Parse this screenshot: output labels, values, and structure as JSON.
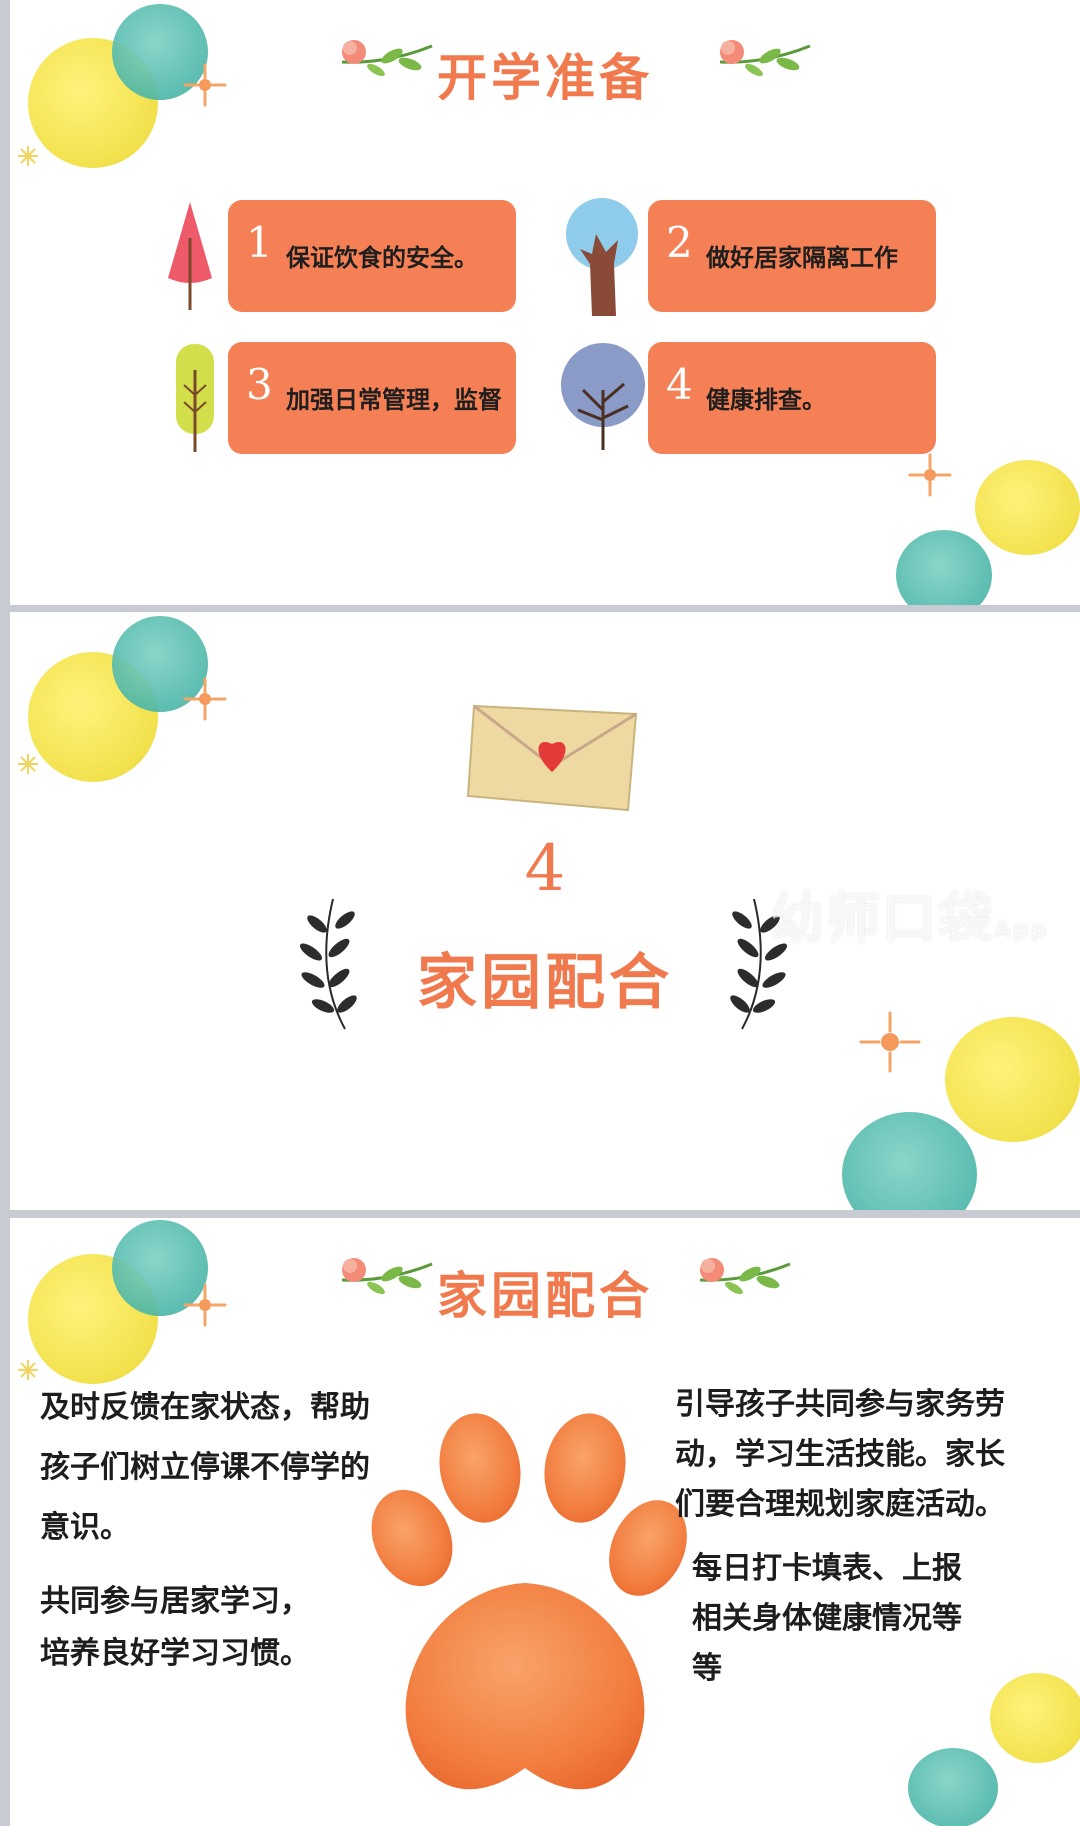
{
  "slide1": {
    "title": "开学准备",
    "items": [
      {
        "num": "1",
        "text": "保证饮食的安全。"
      },
      {
        "num": "2",
        "text": "做好居家隔离工作"
      },
      {
        "num": "3",
        "text": "加强日常管理，监督"
      },
      {
        "num": "4",
        "text": "健康排查。"
      }
    ]
  },
  "slide2": {
    "number": "4",
    "title": "家园配合",
    "watermark": "幼师口袋",
    "watermark_suffix": "App"
  },
  "slide3": {
    "title": "家园配合",
    "left_paragraphs": [
      [
        "及时反馈在家状态，帮助",
        "孩子们树立停课不停学的",
        "意识。"
      ],
      [
        "共同参与居家学习，",
        "培养良好学习习惯。"
      ]
    ],
    "right_paragraphs": [
      [
        "引导孩子共同参与家务劳",
        "动，学习生活技能。家长",
        "们要合理规划家庭活动。"
      ],
      [
        "每日打卡填表、上报",
        "相关身体健康情况等",
        "等"
      ]
    ]
  },
  "colors": {
    "accent": "#f07a4e",
    "card": "#f58055",
    "yellow": "#f1df3e",
    "teal": "#4bb6a8"
  }
}
